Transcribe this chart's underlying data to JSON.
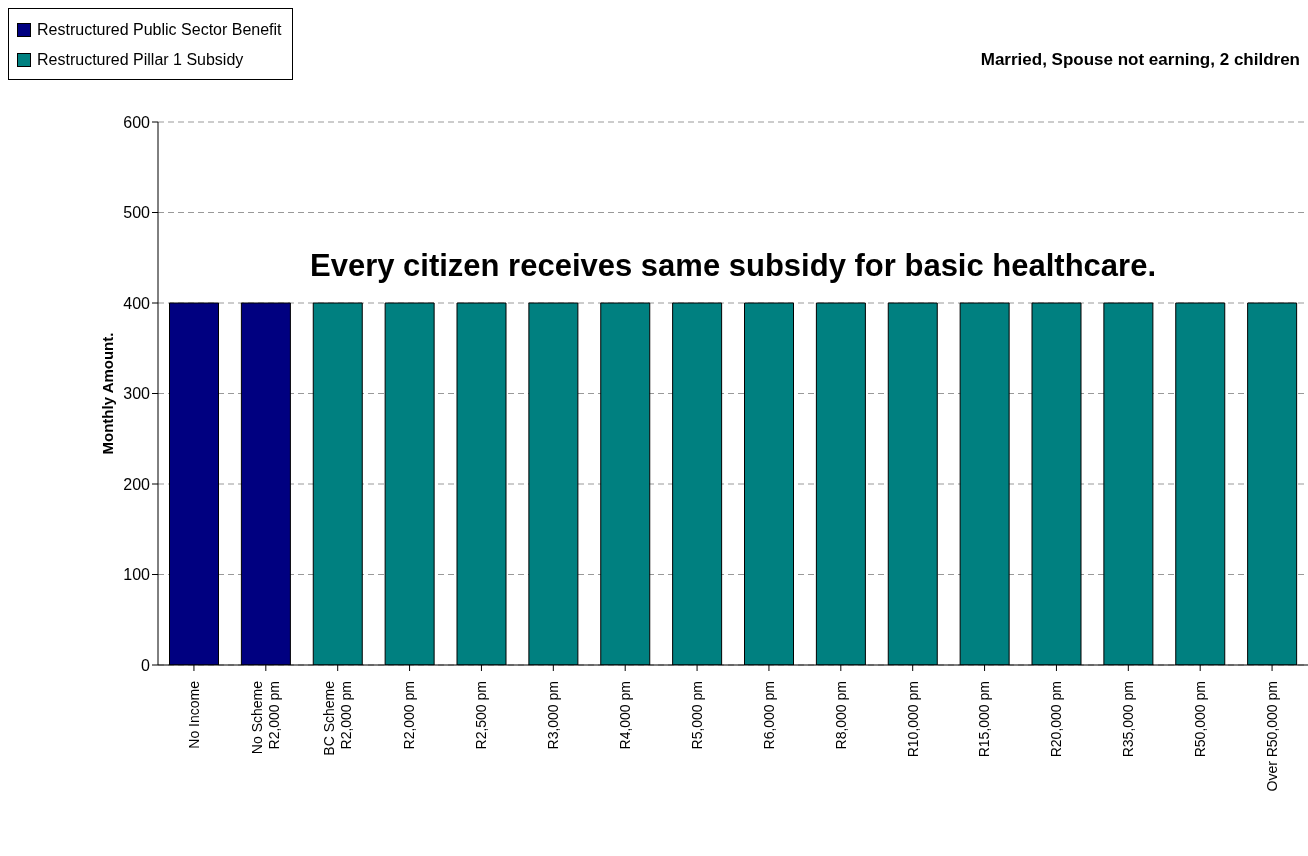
{
  "chart_data": {
    "type": "bar",
    "title": "Married, Spouse not earning, 2 children",
    "ylabel": "Monthly Amount.",
    "annotations": [
      "Every citizen receives same subsidy for basic healthcare."
    ],
    "categories": [
      "No Income",
      "No Scheme\nR2,000 pm",
      "BC Scheme\nR2,000 pm",
      "R2,000 pm",
      "R2,500 pm",
      "R3,000 pm",
      "R4,000 pm",
      "R5,000 pm",
      "R6,000 pm",
      "R8,000 pm",
      "R10,000 pm",
      "R15,000 pm",
      "R20,000 pm",
      "R35,000 pm",
      "R50,000 pm",
      "Over R50,000 pm"
    ],
    "series": [
      {
        "name": "Restructured Public Sector Benefit",
        "color": "#000080",
        "values": [
          400,
          400,
          null,
          null,
          null,
          null,
          null,
          null,
          null,
          null,
          null,
          null,
          null,
          null,
          null,
          null
        ]
      },
      {
        "name": "Restructured Pillar 1 Subsidy",
        "color": "#008080",
        "values": [
          null,
          null,
          400,
          400,
          400,
          400,
          400,
          400,
          400,
          400,
          400,
          400,
          400,
          400,
          400,
          400
        ]
      }
    ],
    "stacked": true,
    "ylim": [
      0,
      600
    ],
    "yticks": [
      0,
      100,
      200,
      300,
      400,
      500,
      600
    ],
    "grid": "y",
    "legend": "top left"
  }
}
